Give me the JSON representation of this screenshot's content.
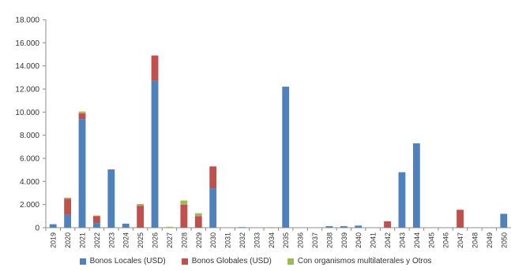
{
  "chart_data": {
    "type": "bar",
    "stacked": true,
    "title": "",
    "xlabel": "",
    "ylabel": "",
    "ylim": [
      0,
      18000
    ],
    "y_ticks": [
      "0",
      "2.000",
      "4.000",
      "6.000",
      "8.000",
      "10.000",
      "12.000",
      "14.000",
      "16.000",
      "18.000"
    ],
    "grid": false,
    "legend_position": "bottom",
    "categories": [
      "2019",
      "2020",
      "2021",
      "2022",
      "2023",
      "2024",
      "2025",
      "2026",
      "2027",
      "2028",
      "2029",
      "2030",
      "2031",
      "2032",
      "2033",
      "2034",
      "2035",
      "2036",
      "2037",
      "2038",
      "2039",
      "2040",
      "2041",
      "2042",
      "2043",
      "2044",
      "2045",
      "2046",
      "2047",
      "2048",
      "2049",
      "2050"
    ],
    "series": [
      {
        "name": "Bonos Locales (USD)",
        "color": "#4f81bd",
        "values": [
          300,
          1100,
          9400,
          400,
          5000,
          350,
          0,
          12700,
          0,
          0,
          0,
          3400,
          0,
          50,
          0,
          0,
          12200,
          0,
          0,
          130,
          130,
          180,
          0,
          0,
          4800,
          7300,
          0,
          0,
          0,
          0,
          0,
          1200
        ]
      },
      {
        "name": "Bonos Globales (USD)",
        "color": "#c0504d",
        "values": [
          0,
          1400,
          500,
          600,
          50,
          0,
          1900,
          2200,
          0,
          2000,
          1000,
          1900,
          0,
          0,
          0,
          0,
          0,
          0,
          0,
          0,
          0,
          0,
          0,
          550,
          0,
          0,
          0,
          0,
          1550,
          0,
          0,
          0
        ]
      },
      {
        "name": "Con organismos multilaterales y Otros",
        "color": "#9bbb59",
        "values": [
          0,
          100,
          150,
          50,
          0,
          0,
          150,
          0,
          80,
          350,
          250,
          0,
          0,
          0,
          0,
          50,
          0,
          0,
          0,
          0,
          0,
          0,
          0,
          0,
          0,
          0,
          0,
          0,
          0,
          0,
          0,
          0
        ]
      }
    ]
  }
}
